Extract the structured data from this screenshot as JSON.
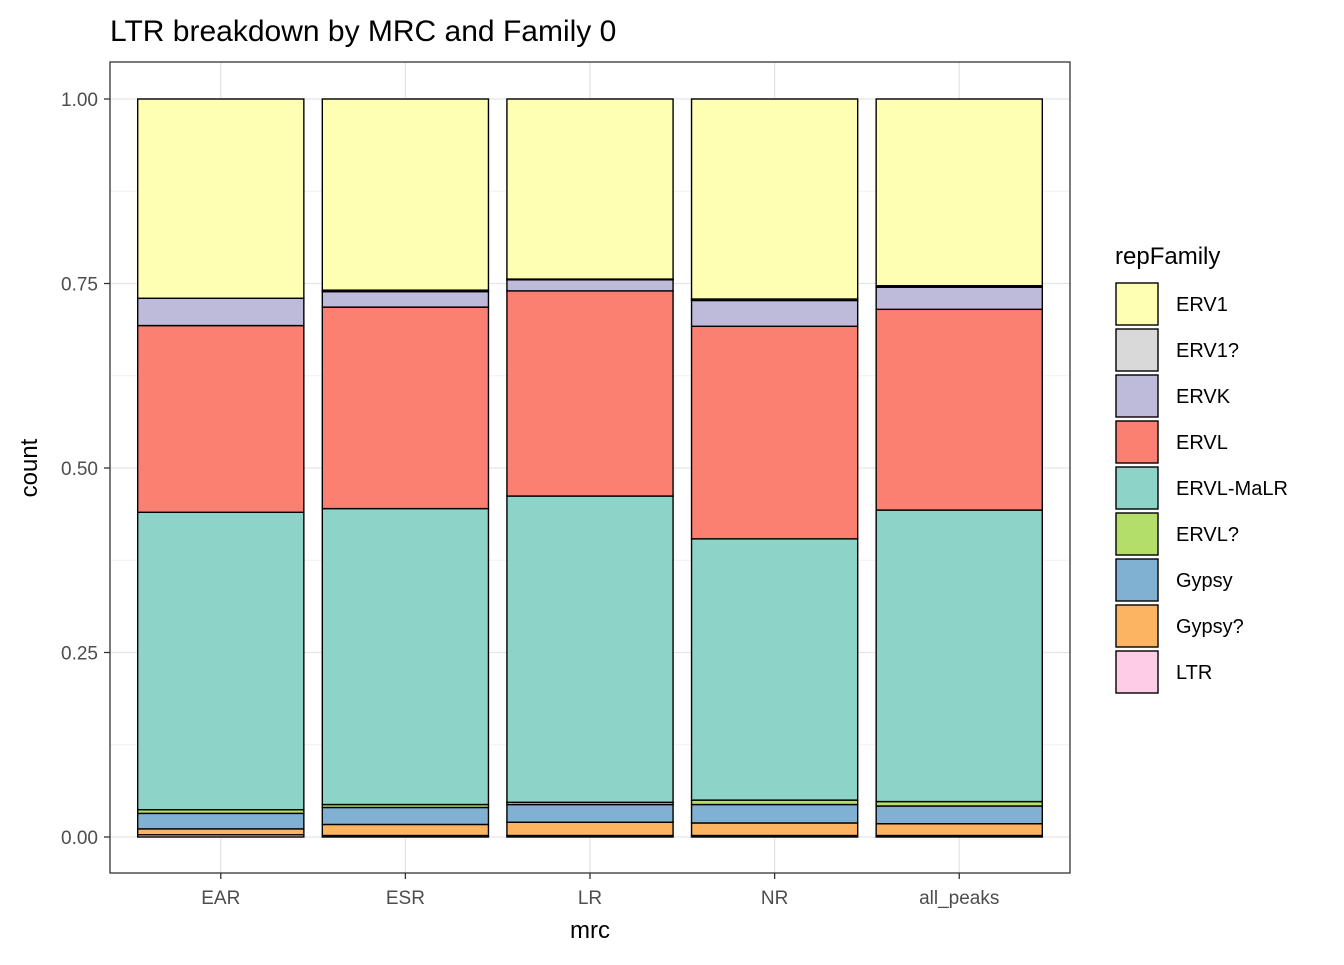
{
  "chart_data": {
    "type": "bar",
    "stacked": true,
    "title": "LTR breakdown by MRC and Family 0",
    "xlabel": "mrc",
    "ylabel": "count",
    "ylim": [
      -0.05,
      1.05
    ],
    "yticks": [
      "0.00",
      "0.25",
      "0.50",
      "0.75",
      "1.00"
    ],
    "ytick_values": [
      0,
      0.25,
      0.5,
      0.75,
      1.0
    ],
    "grid": true,
    "legend_title": "repFamily",
    "legend_position": "right",
    "categories": [
      "EAR",
      "ESR",
      "LR",
      "NR",
      "all_peaks"
    ],
    "series": [
      {
        "name": "LTR",
        "color": "#FCCDE5",
        "values": [
          0.003,
          0.002,
          0.002,
          0.002,
          0.002
        ]
      },
      {
        "name": "Gypsy?",
        "color": "#FDB462",
        "values": [
          0.008,
          0.015,
          0.018,
          0.017,
          0.016
        ]
      },
      {
        "name": "Gypsy",
        "color": "#80B1D3",
        "values": [
          0.021,
          0.023,
          0.024,
          0.025,
          0.024
        ]
      },
      {
        "name": "ERVL?",
        "color": "#B3DE69",
        "values": [
          0.005,
          0.004,
          0.003,
          0.006,
          0.006
        ]
      },
      {
        "name": "ERVL-MaLR",
        "color": "#8DD3C7",
        "values": [
          0.403,
          0.401,
          0.415,
          0.354,
          0.395
        ]
      },
      {
        "name": "ERVL",
        "color": "#FB8072",
        "values": [
          0.253,
          0.273,
          0.278,
          0.288,
          0.272
        ]
      },
      {
        "name": "ERVK",
        "color": "#BEBADA",
        "values": [
          0.037,
          0.021,
          0.015,
          0.035,
          0.03
        ]
      },
      {
        "name": "ERV1?",
        "color": "#D9D9D9",
        "values": [
          0.0,
          0.002,
          0.001,
          0.002,
          0.002
        ]
      },
      {
        "name": "ERV1",
        "color": "#FFFFB3",
        "values": [
          0.27,
          0.259,
          0.244,
          0.271,
          0.253
        ]
      }
    ],
    "legend_order": [
      "ERV1",
      "ERV1?",
      "ERVK",
      "ERVL",
      "ERVL-MaLR",
      "ERVL?",
      "Gypsy",
      "Gypsy?",
      "LTR"
    ]
  }
}
